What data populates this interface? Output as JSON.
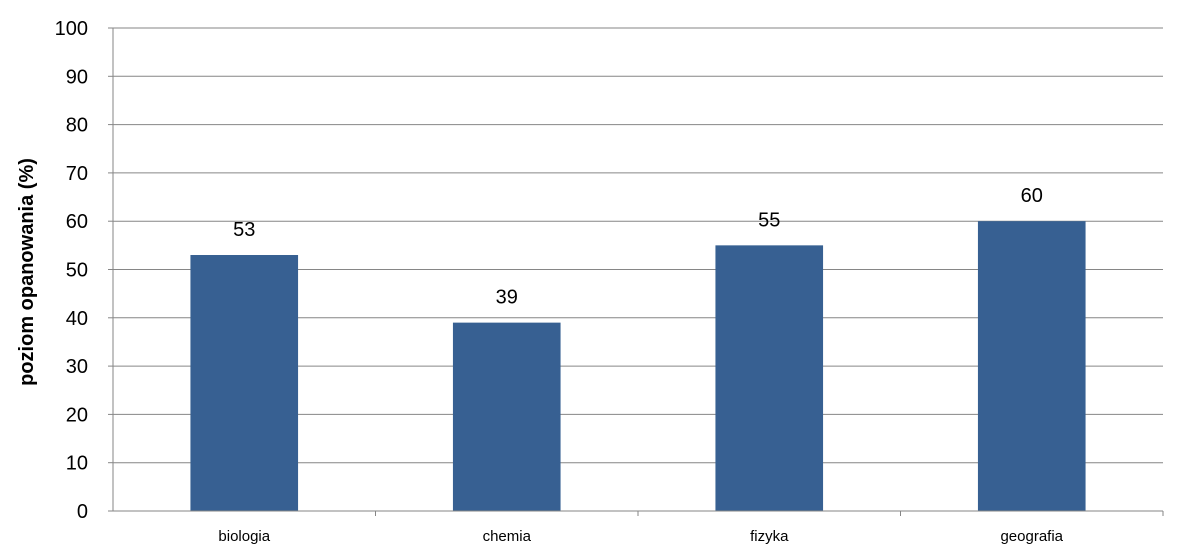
{
  "chart_data": {
    "type": "bar",
    "title": "",
    "xlabel": "",
    "ylabel": "poziom opanowania (%)",
    "categories": [
      "biologia",
      "chemia",
      "fizyka",
      "geografia"
    ],
    "values": [
      53,
      39,
      55,
      60
    ],
    "data_labels": [
      "53",
      "39",
      "55",
      "60"
    ],
    "ylim": [
      0,
      100
    ],
    "yticks": [
      "0",
      "10",
      "20",
      "30",
      "40",
      "50",
      "60",
      "70",
      "80",
      "90",
      "100"
    ],
    "grid": true,
    "legend": "none",
    "bar_color": "#376092",
    "gridline_color": "#868686"
  }
}
